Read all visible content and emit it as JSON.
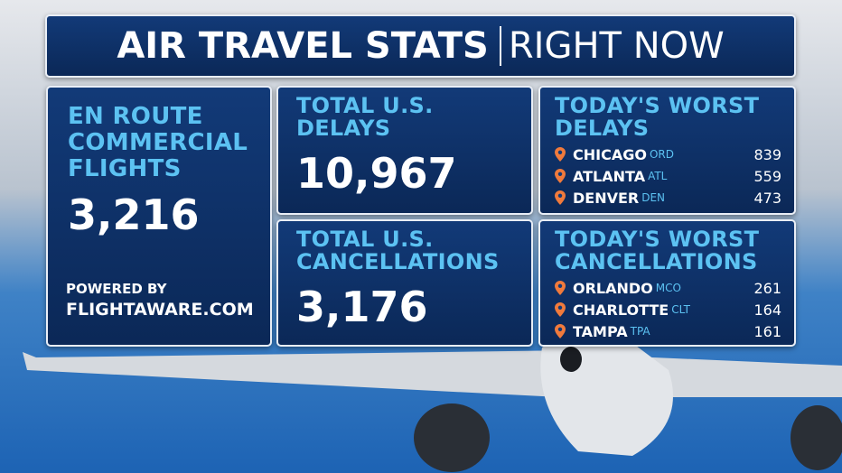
{
  "header": {
    "title": "AIR TRAVEL STATS",
    "subtitle": "RIGHT NOW"
  },
  "en_route": {
    "label": "EN ROUTE COMMERCIAL FLIGHTS",
    "value": "3,216",
    "powered_by": "POWERED BY",
    "source": "FLIGHTAWARE.COM"
  },
  "total_delays": {
    "label": "TOTAL U.S. DELAYS",
    "value": "10,967"
  },
  "total_cancellations": {
    "label": "TOTAL U.S. CANCELLATIONS",
    "value": "3,176"
  },
  "worst_delays": {
    "title": "TODAY'S WORST DELAYS",
    "rows": [
      {
        "city": "CHICAGO",
        "code": "ORD",
        "count": 839
      },
      {
        "city": "ATLANTA",
        "code": "ATL",
        "count": 559
      },
      {
        "city": "DENVER",
        "code": "DEN",
        "count": 473
      }
    ]
  },
  "worst_cancellations": {
    "title": "TODAY'S WORST CANCELLATIONS",
    "rows": [
      {
        "city": "ORLANDO",
        "code": "MCO",
        "count": 261
      },
      {
        "city": "CHARLOTTE",
        "code": "CLT",
        "count": 164
      },
      {
        "city": "TAMPA",
        "code": "TPA",
        "count": 161
      }
    ]
  }
}
